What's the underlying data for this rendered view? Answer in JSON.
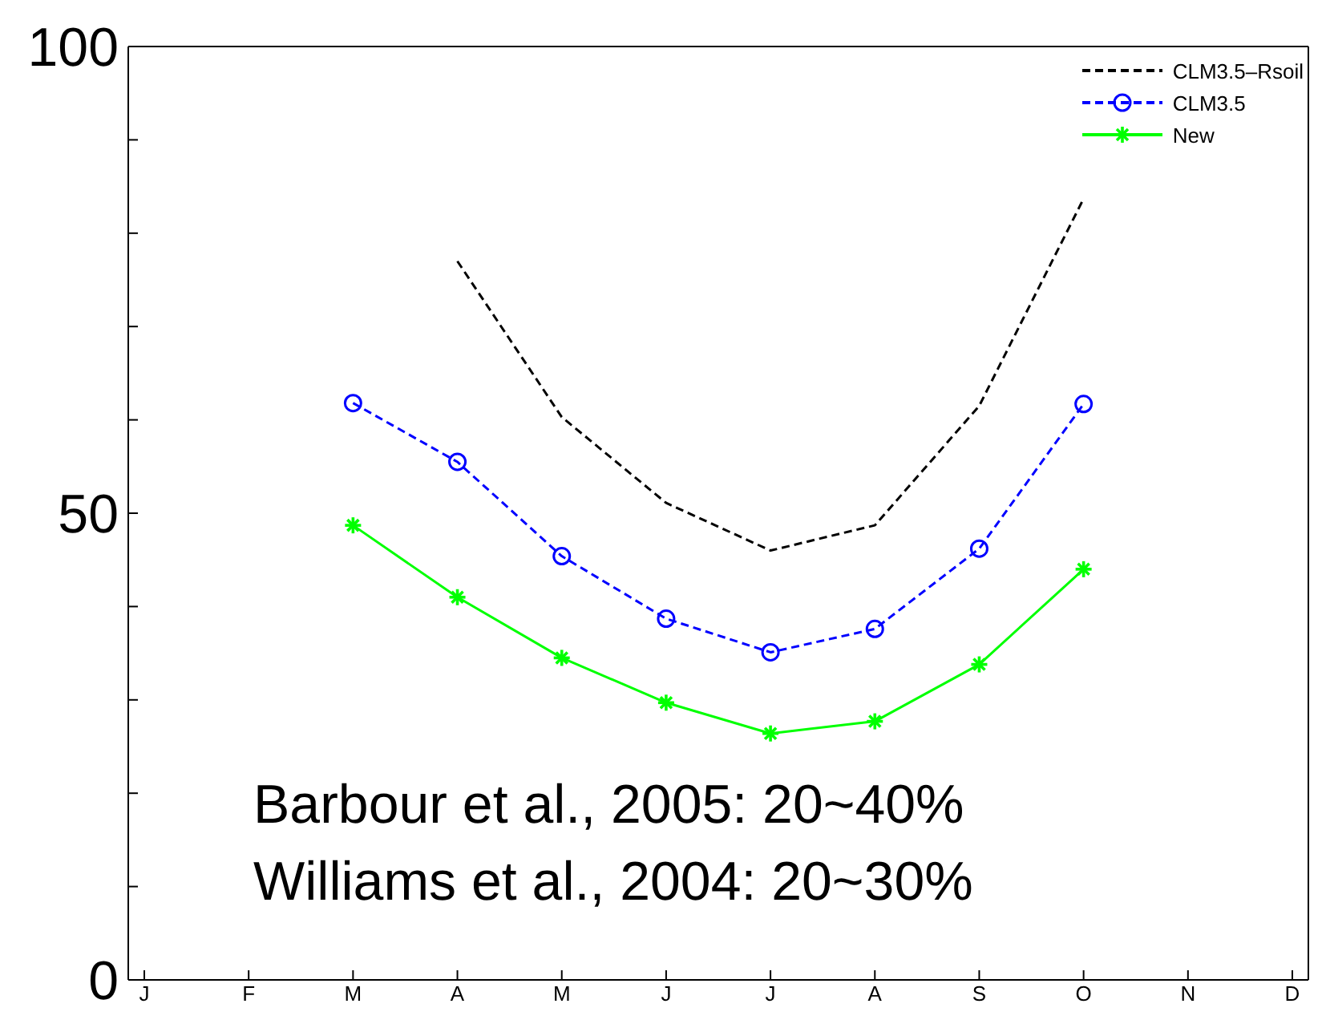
{
  "chart_data": {
    "type": "line",
    "categories": [
      "J",
      "F",
      "M",
      "A",
      "M",
      "J",
      "J",
      "A",
      "S",
      "O",
      "N",
      "D"
    ],
    "series": [
      {
        "name": "CLM3.5–Rsoil",
        "color": "#000000",
        "line_style": "dashed",
        "marker": "none",
        "values": [
          null,
          null,
          null,
          77,
          60.3,
          51.1,
          46,
          48.7,
          61.5,
          83.7,
          null,
          null
        ]
      },
      {
        "name": "CLM3.5",
        "color": "#0000ff",
        "line_style": "dashed",
        "marker": "circle",
        "values": [
          null,
          null,
          61.8,
          55.5,
          45.4,
          38.7,
          35.1,
          37.6,
          46.2,
          61.7,
          null,
          null
        ]
      },
      {
        "name": "New",
        "color": "#00ff00",
        "line_style": "solid",
        "marker": "cross",
        "values": [
          null,
          null,
          48.7,
          41,
          34.5,
          29.7,
          26.4,
          27.7,
          33.8,
          44,
          null,
          null
        ]
      }
    ],
    "ylim": [
      0,
      100
    ],
    "yticks": [
      0,
      {
        "value": 10,
        "label": null
      },
      {
        "value": 20,
        "label": null
      },
      {
        "value": 30,
        "label": null
      },
      {
        "value": 40,
        "label": null
      },
      50,
      {
        "value": 60,
        "label": null
      },
      {
        "value": 70,
        "label": null
      },
      {
        "value": 80,
        "label": null
      },
      {
        "value": 90,
        "label": null
      },
      100
    ],
    "annotations": [
      "Barbour et al., 2005: 20~40%",
      "Williams et al., 2004: 20~30%"
    ],
    "legend": "top right",
    "grid": false
  }
}
